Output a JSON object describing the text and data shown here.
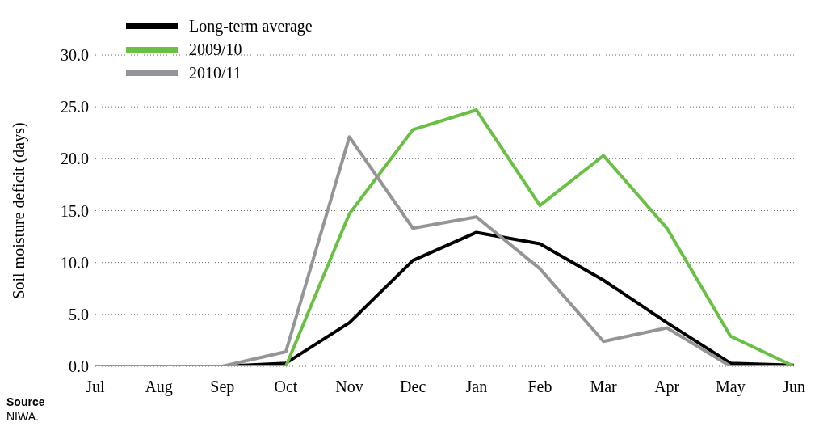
{
  "chart_data": {
    "type": "line",
    "ylabel": "Soil moisture deficit (days)",
    "categories": [
      "Jul",
      "Aug",
      "Sep",
      "Oct",
      "Nov",
      "Dec",
      "Jan",
      "Feb",
      "Mar",
      "Apr",
      "May",
      "Jun"
    ],
    "series": [
      {
        "name": "Long-term average",
        "color": "#000000",
        "values": [
          0,
          0,
          0,
          0.3,
          4.2,
          10.2,
          12.9,
          11.8,
          8.3,
          4.2,
          0.3,
          0.1
        ]
      },
      {
        "name": "2009/10",
        "color": "#6abf45",
        "values": [
          0,
          0,
          0,
          0,
          14.7,
          22.8,
          24.7,
          15.5,
          20.3,
          13.3,
          2.9,
          0
        ]
      },
      {
        "name": "2010/11",
        "color": "#939598",
        "values": [
          0,
          0,
          0,
          1.4,
          22.1,
          13.3,
          14.4,
          9.4,
          2.4,
          3.7,
          0,
          0
        ]
      }
    ],
    "ylim": [
      0,
      30
    ],
    "yticks": [
      {
        "value": 0,
        "label": "0.0"
      },
      {
        "value": 5,
        "label": "5.0"
      },
      {
        "value": 10,
        "label": "10.0"
      },
      {
        "value": 15,
        "label": "15.0"
      },
      {
        "value": 20,
        "label": "20.0"
      },
      {
        "value": 25,
        "label": "25.0"
      },
      {
        "value": 30,
        "label": "30.0"
      }
    ],
    "grid": "y",
    "legend": "top left",
    "line_style": "solid",
    "annotations": [
      "Source",
      "NIWA."
    ]
  }
}
